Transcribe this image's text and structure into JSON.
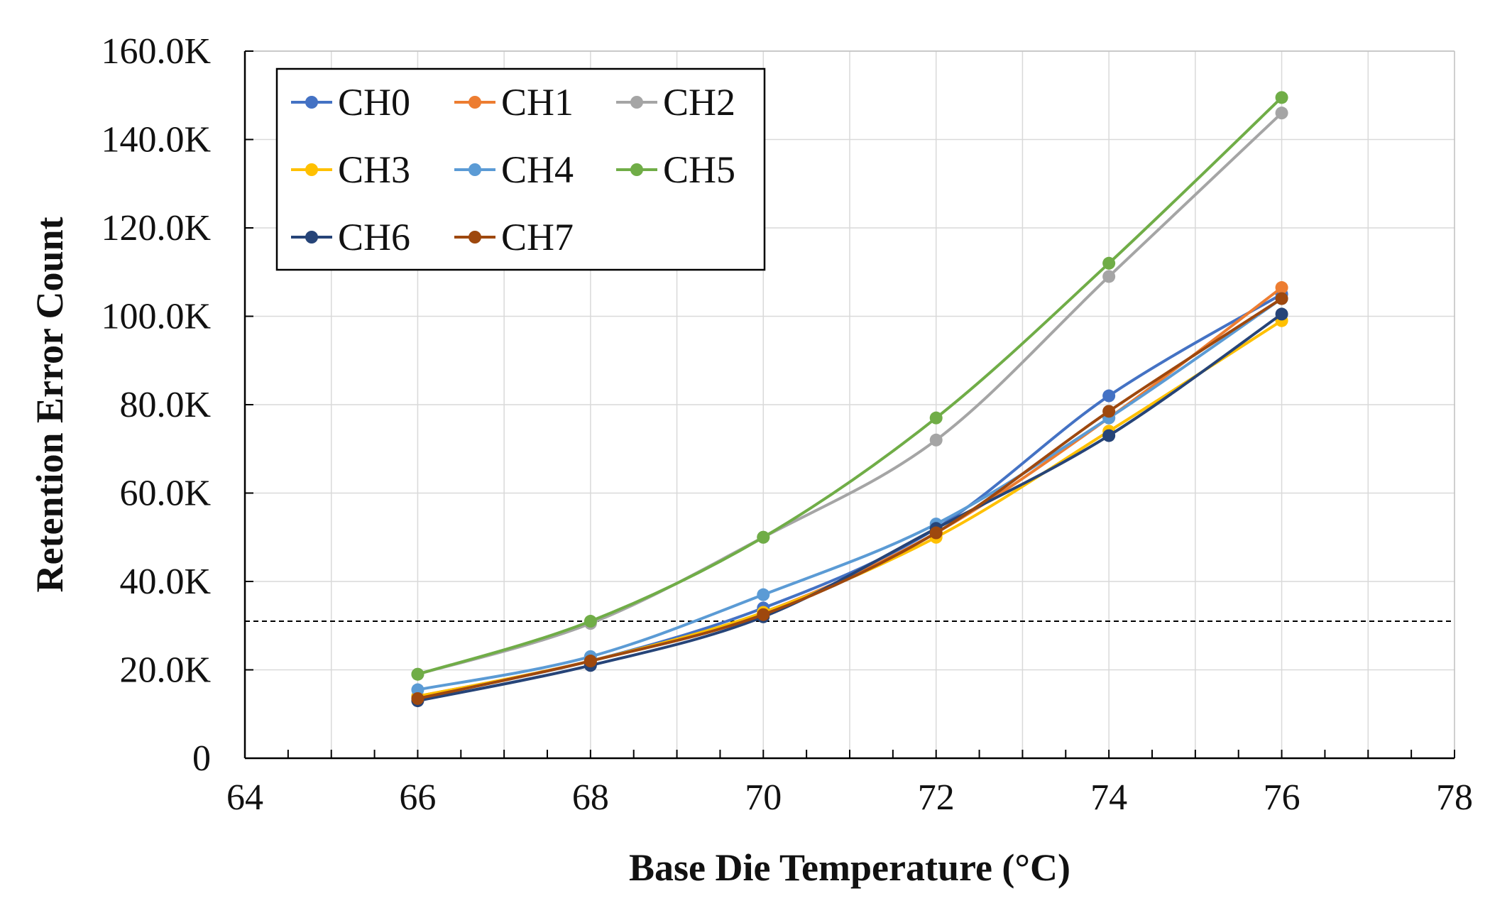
{
  "chart_data": {
    "type": "line",
    "title": "",
    "xlabel": "Base Die Temperature (°C)",
    "ylabel": "Retention Error Count",
    "xlim": [
      64,
      78
    ],
    "ylim": [
      0,
      160000
    ],
    "x_ticks": [
      64,
      66,
      68,
      70,
      72,
      74,
      76,
      78
    ],
    "y_ticks": [
      0,
      20000,
      40000,
      60000,
      80000,
      100000,
      120000,
      140000,
      160000
    ],
    "x_tick_labels": [
      "64",
      "66",
      "68",
      "70",
      "72",
      "74",
      "76",
      "78"
    ],
    "y_tick_labels": [
      "0",
      "20.0K",
      "40.0K",
      "60.0K",
      "80.0K",
      "100.0K",
      "120.0K",
      "140.0K",
      "160.0K"
    ],
    "grid": true,
    "legend_position": "top-left",
    "reference_line": {
      "y": 31000,
      "style": "dashed"
    },
    "x": [
      66,
      68,
      70,
      72,
      74,
      76
    ],
    "series": [
      {
        "name": "CH0",
        "color": "#4472C4",
        "values": [
          14000,
          22000,
          34000,
          52000,
          82000,
          105000
        ]
      },
      {
        "name": "CH1",
        "color": "#ED7D31",
        "values": [
          14000,
          22000,
          33000,
          51000,
          77000,
          106500
        ]
      },
      {
        "name": "CH2",
        "color": "#A5A5A5",
        "values": [
          19000,
          30500,
          50000,
          72000,
          109000,
          146000
        ]
      },
      {
        "name": "CH3",
        "color": "#FFC000",
        "values": [
          14000,
          22000,
          33000,
          50000,
          74000,
          99000
        ]
      },
      {
        "name": "CH4",
        "color": "#5B9BD5",
        "values": [
          15500,
          23000,
          37000,
          53000,
          77000,
          104000
        ]
      },
      {
        "name": "CH5",
        "color": "#70AD47",
        "values": [
          19000,
          31000,
          50000,
          77000,
          112000,
          149500
        ]
      },
      {
        "name": "CH6",
        "color": "#264478",
        "values": [
          13000,
          21000,
          32000,
          52000,
          73000,
          100500
        ]
      },
      {
        "name": "CH7",
        "color": "#9E480E",
        "values": [
          13500,
          22000,
          32500,
          51000,
          78500,
          104000
        ]
      }
    ]
  }
}
